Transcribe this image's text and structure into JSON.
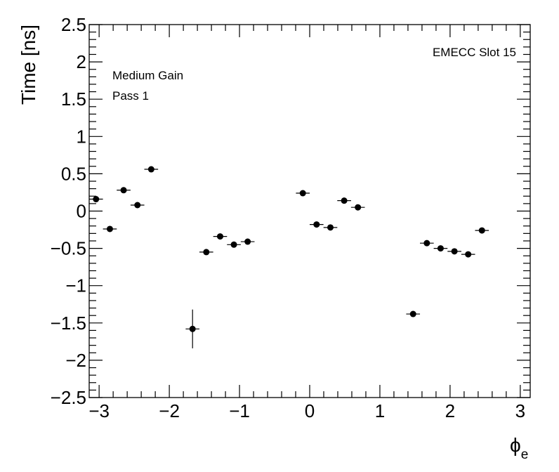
{
  "chart_data": {
    "type": "scatter",
    "title": "",
    "xlabel": "ϕ",
    "xlabel_sub": "e",
    "ylabel": "Time [ns]",
    "xlim": [
      -3.1416,
      3.1416
    ],
    "ylim": [
      -2.5,
      2.5
    ],
    "x_ticks": [
      -3,
      -2,
      -1,
      0,
      1,
      2,
      3
    ],
    "x_tick_labels": [
      "−3",
      "−2",
      "−1",
      "0",
      "1",
      "2",
      "3"
    ],
    "y_ticks": [
      -2.5,
      -2,
      -1.5,
      -1,
      -0.5,
      0,
      0.5,
      1,
      1.5,
      2,
      2.5
    ],
    "y_tick_labels": [
      "−2.5",
      "−2",
      "−1.5",
      "−1",
      "−0.5",
      "0",
      "0.5",
      "1",
      "1.5",
      "2",
      "2.5"
    ],
    "grid": false,
    "annotations": {
      "top_right": "EMECC Slot 15",
      "line1": "Medium Gain",
      "line2": "Pass 1"
    },
    "series": [
      {
        "x_halfwidth": 0.0982,
        "points": [
          {
            "x": -3.044,
            "y": 0.16,
            "yerr": 0.01
          },
          {
            "x": -2.847,
            "y": -0.24,
            "yerr": 0.01
          },
          {
            "x": -2.651,
            "y": 0.28,
            "yerr": 0.01
          },
          {
            "x": -2.454,
            "y": 0.08,
            "yerr": 0.01
          },
          {
            "x": -2.258,
            "y": 0.56,
            "yerr": 0.01
          },
          {
            "x": -1.669,
            "y": -1.58,
            "yerr": 0.26
          },
          {
            "x": -1.473,
            "y": -0.55,
            "yerr": 0.01
          },
          {
            "x": -1.276,
            "y": -0.34,
            "yerr": 0.01
          },
          {
            "x": -1.08,
            "y": -0.45,
            "yerr": 0.01
          },
          {
            "x": -0.884,
            "y": -0.41,
            "yerr": 0.01
          },
          {
            "x": -0.098,
            "y": 0.24,
            "yerr": 0.01
          },
          {
            "x": 0.098,
            "y": -0.18,
            "yerr": 0.01
          },
          {
            "x": 0.295,
            "y": -0.22,
            "yerr": 0.01
          },
          {
            "x": 0.491,
            "y": 0.14,
            "yerr": 0.01
          },
          {
            "x": 0.687,
            "y": 0.05,
            "yerr": 0.01
          },
          {
            "x": 1.473,
            "y": -1.38,
            "yerr": 0.01
          },
          {
            "x": 1.669,
            "y": -0.43,
            "yerr": 0.01
          },
          {
            "x": 1.865,
            "y": -0.5,
            "yerr": 0.01
          },
          {
            "x": 2.062,
            "y": -0.54,
            "yerr": 0.01
          },
          {
            "x": 2.258,
            "y": -0.58,
            "yerr": 0.01
          },
          {
            "x": 2.454,
            "y": -0.26,
            "yerr": 0.01
          }
        ]
      }
    ]
  }
}
